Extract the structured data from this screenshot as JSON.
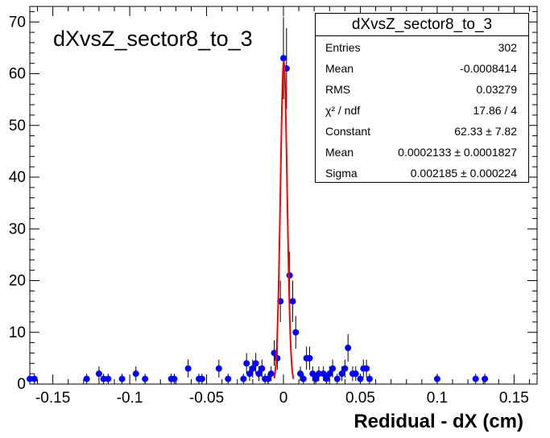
{
  "histogram_title": "dXvsZ_sector8_to_3",
  "stats_box": {
    "title": "dXvsZ_sector8_to_3",
    "rows": [
      {
        "key": "Entries",
        "value": "302"
      },
      {
        "key": "Mean",
        "value": "-0.0008414"
      },
      {
        "key": "RMS",
        "value": "0.03279"
      },
      {
        "key": "χ² / ndf",
        "value": "17.86 / 4"
      },
      {
        "key": "Constant",
        "value": "62.33 ± 7.82"
      },
      {
        "key": "Mean",
        "value": "0.0002133 ± 0.0001827"
      },
      {
        "key": "Sigma",
        "value": "0.002185 ± 0.000224"
      }
    ]
  },
  "colors": {
    "points": "#0000ff",
    "fit": "#ff0000",
    "axes": "#000000"
  },
  "chart_data": {
    "type": "scatter",
    "xlabel": "Redidual - dX (cm)",
    "ylabel": "",
    "xlim": [
      -0.165,
      0.165
    ],
    "ylim": [
      0,
      73
    ],
    "x_ticks": [
      "-0.15",
      "-0.1",
      "-0.05",
      "0",
      "0.05",
      "0.1",
      "0.15"
    ],
    "y_ticks": [
      "0",
      "10",
      "20",
      "30",
      "40",
      "50",
      "60",
      "70"
    ],
    "series": [
      {
        "points": [
          {
            "x": -0.165,
            "y": 1
          },
          {
            "x": -0.162,
            "y": 1
          },
          {
            "x": -0.128,
            "y": 1
          },
          {
            "x": -0.12,
            "y": 2
          },
          {
            "x": -0.117,
            "y": 1
          },
          {
            "x": -0.114,
            "y": 1
          },
          {
            "x": -0.105,
            "y": 1
          },
          {
            "x": -0.096,
            "y": 2
          },
          {
            "x": -0.09,
            "y": 1
          },
          {
            "x": -0.073,
            "y": 1
          },
          {
            "x": -0.071,
            "y": 1
          },
          {
            "x": -0.062,
            "y": 3
          },
          {
            "x": -0.055,
            "y": 1
          },
          {
            "x": -0.053,
            "y": 1
          },
          {
            "x": -0.042,
            "y": 3
          },
          {
            "x": -0.036,
            "y": 1
          },
          {
            "x": -0.026,
            "y": 1
          },
          {
            "x": -0.024,
            "y": 4
          },
          {
            "x": -0.022,
            "y": 2
          },
          {
            "x": -0.02,
            "y": 3
          },
          {
            "x": -0.018,
            "y": 4
          },
          {
            "x": -0.016,
            "y": 2
          },
          {
            "x": -0.014,
            "y": 3
          },
          {
            "x": -0.012,
            "y": 1
          },
          {
            "x": -0.01,
            "y": 1
          },
          {
            "x": -0.008,
            "y": 2
          },
          {
            "x": -0.006,
            "y": 6
          },
          {
            "x": -0.004,
            "y": 5
          },
          {
            "x": -0.002,
            "y": 16
          },
          {
            "x": 0.0,
            "y": 63
          },
          {
            "x": 0.002,
            "y": 61
          },
          {
            "x": 0.004,
            "y": 21
          },
          {
            "x": 0.006,
            "y": 16
          },
          {
            "x": 0.008,
            "y": 10
          },
          {
            "x": 0.011,
            "y": 2
          },
          {
            "x": 0.013,
            "y": 1
          },
          {
            "x": 0.015,
            "y": 5
          },
          {
            "x": 0.017,
            "y": 5
          },
          {
            "x": 0.019,
            "y": 2
          },
          {
            "x": 0.021,
            "y": 1
          },
          {
            "x": 0.023,
            "y": 2
          },
          {
            "x": 0.026,
            "y": 2
          },
          {
            "x": 0.028,
            "y": 1
          },
          {
            "x": 0.03,
            "y": 2
          },
          {
            "x": 0.032,
            "y": 3
          },
          {
            "x": 0.035,
            "y": 1
          },
          {
            "x": 0.038,
            "y": 2
          },
          {
            "x": 0.04,
            "y": 3
          },
          {
            "x": 0.042,
            "y": 7
          },
          {
            "x": 0.045,
            "y": 2
          },
          {
            "x": 0.047,
            "y": 2
          },
          {
            "x": 0.05,
            "y": 1
          },
          {
            "x": 0.052,
            "y": 3
          },
          {
            "x": 0.054,
            "y": 3
          },
          {
            "x": 0.056,
            "y": 1
          },
          {
            "x": 0.1,
            "y": 1
          },
          {
            "x": 0.125,
            "y": 1
          },
          {
            "x": 0.131,
            "y": 1
          }
        ]
      }
    ],
    "fit": {
      "function": "gaussian",
      "constant": 62.33,
      "mean": 0.0002133,
      "sigma": 0.002185,
      "range": [
        -0.006,
        0.0065
      ]
    }
  }
}
